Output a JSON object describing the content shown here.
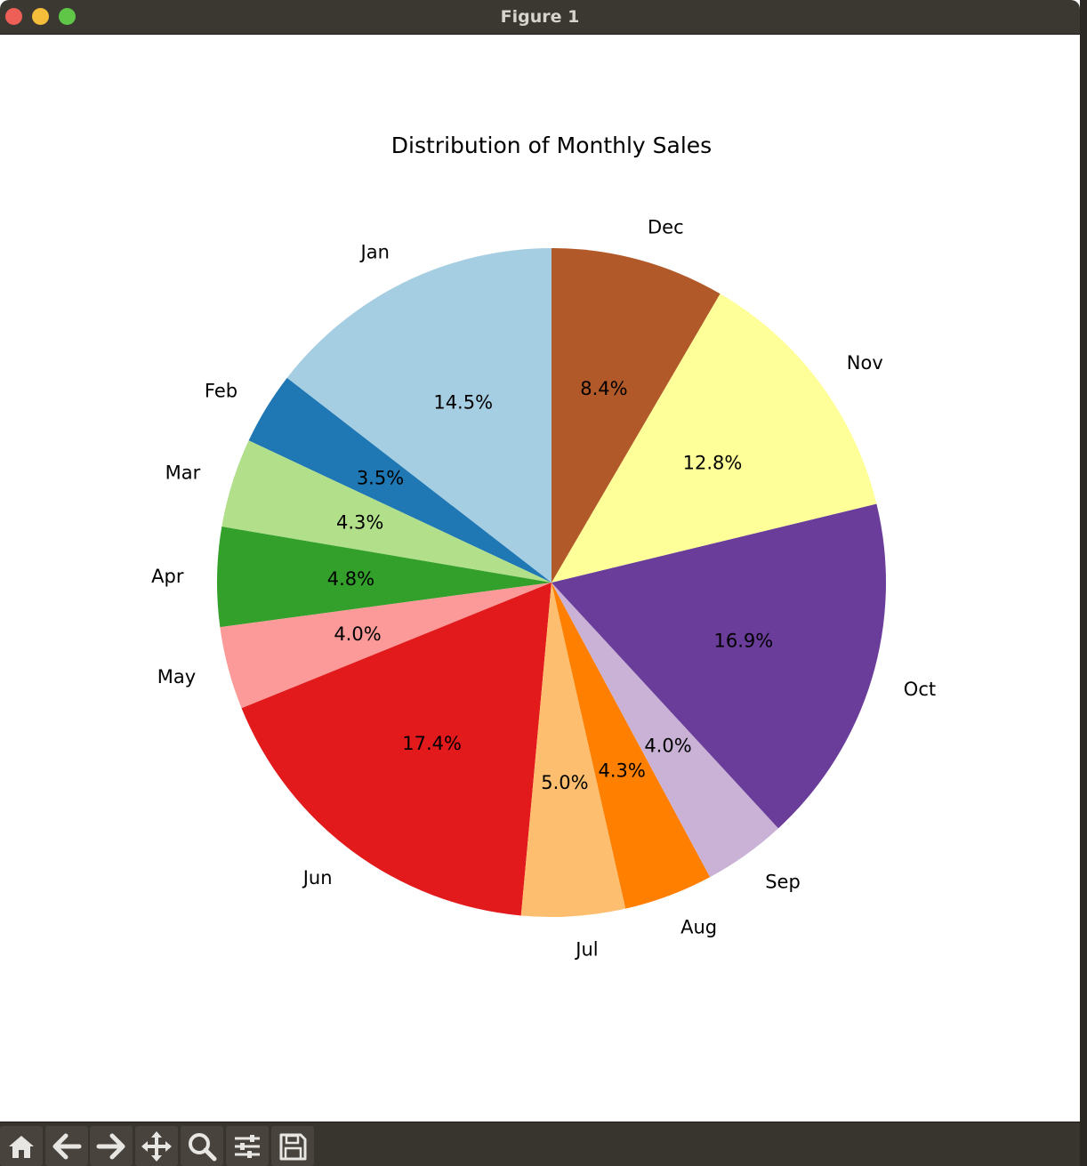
{
  "window": {
    "title": "Figure 1"
  },
  "toolbar": {
    "buttons": [
      {
        "name": "home-button",
        "icon": "home-icon"
      },
      {
        "name": "back-button",
        "icon": "arrow-left-icon"
      },
      {
        "name": "forward-button",
        "icon": "arrow-right-icon"
      },
      {
        "name": "pan-button",
        "icon": "move-icon"
      },
      {
        "name": "zoom-button",
        "icon": "magnifier-icon"
      },
      {
        "name": "configure-subplots-button",
        "icon": "sliders-icon"
      },
      {
        "name": "save-button",
        "icon": "floppy-disk-icon"
      }
    ]
  },
  "chart_data": {
    "type": "pie",
    "title": "Distribution of Monthly Sales",
    "start_angle_deg": 90,
    "direction": "counterclockwise",
    "categories": [
      "Jan",
      "Feb",
      "Mar",
      "Apr",
      "May",
      "Jun",
      "Jul",
      "Aug",
      "Sep",
      "Oct",
      "Nov",
      "Dec"
    ],
    "values": [
      14.5,
      3.5,
      4.3,
      4.8,
      4.0,
      17.4,
      5.0,
      4.3,
      4.0,
      16.9,
      12.8,
      8.4
    ],
    "pct_labels": [
      "14.5%",
      "3.5%",
      "4.3%",
      "4.8%",
      "4.0%",
      "17.4%",
      "5.0%",
      "4.3%",
      "4.0%",
      "16.9%",
      "12.8%",
      "8.4%"
    ],
    "colors": [
      "#a6cee3",
      "#1f78b4",
      "#b2df8a",
      "#33a02c",
      "#fb9a99",
      "#e31a1c",
      "#fdbf6f",
      "#ff7f00",
      "#cab2d6",
      "#6a3d9a",
      "#ffff99",
      "#b15928"
    ]
  }
}
